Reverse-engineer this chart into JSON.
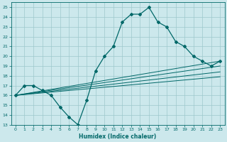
{
  "title": "",
  "xlabel": "Humidex (Indice chaleur)",
  "ylabel": "",
  "xlim": [
    -0.5,
    23.5
  ],
  "ylim": [
    13,
    25.5
  ],
  "yticks": [
    13,
    14,
    15,
    16,
    17,
    18,
    19,
    20,
    21,
    22,
    23,
    24,
    25
  ],
  "xticks": [
    0,
    1,
    2,
    3,
    4,
    5,
    6,
    7,
    8,
    9,
    10,
    11,
    12,
    13,
    14,
    15,
    16,
    17,
    18,
    19,
    20,
    21,
    22,
    23
  ],
  "bg_color": "#cce8ec",
  "grid_color": "#9ec8cc",
  "line_color": "#006868",
  "main_y": [
    16.0,
    17.0,
    17.0,
    16.5,
    16.0,
    14.8,
    13.8,
    13.0,
    15.5,
    18.5,
    20.0,
    21.0,
    23.5,
    24.3,
    24.3,
    25.0,
    23.5,
    23.0,
    21.5,
    21.0,
    20.0,
    19.5,
    19.0,
    19.5
  ],
  "straight_lines": [
    {
      "x0": 0,
      "y0": 16.0,
      "x1": 23,
      "y1": 19.5
    },
    {
      "x0": 0,
      "y0": 16.0,
      "x1": 23,
      "y1": 19.0
    },
    {
      "x0": 0,
      "y0": 16.0,
      "x1": 23,
      "y1": 18.4
    },
    {
      "x0": 0,
      "y0": 16.0,
      "x1": 23,
      "y1": 17.9
    }
  ]
}
